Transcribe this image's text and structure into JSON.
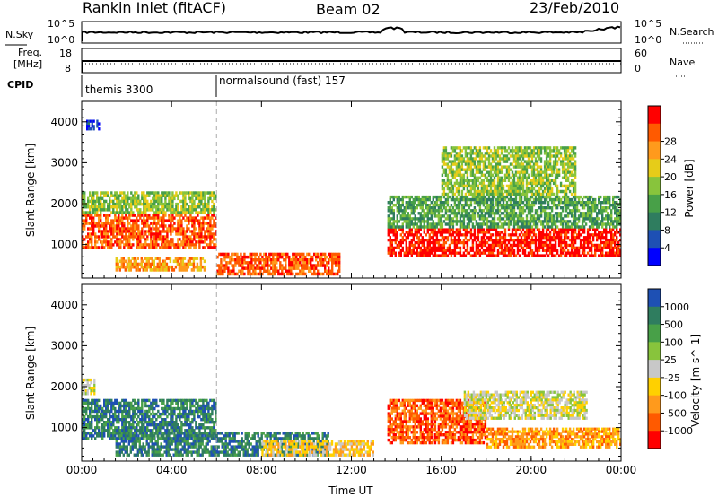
{
  "header": {
    "station": "Rankin Inlet (fitACF)",
    "beam": "Beam 02",
    "date": "23/Feb/2010"
  },
  "top_panel": {
    "nsky_label": "N.Sky",
    "nsearch_label": "N.Search",
    "left_ticks": [
      "10^5",
      "10^0"
    ],
    "right_ticks": [
      "10^5",
      "10^0"
    ],
    "freq_label_1": "Freq.",
    "freq_label_2": "[MHz]",
    "freq_ticks": [
      "18",
      "8"
    ],
    "nave_label": "Nave",
    "nave_ticks": [
      "60",
      "0"
    ],
    "cpid_label": "CPID",
    "cpid_segments": [
      {
        "label": "themis 3300",
        "start_hour": 0
      },
      {
        "label": "normalsound (fast) 157",
        "start_hour": 6
      }
    ]
  },
  "chart_data": [
    {
      "type": "heatmap",
      "title": "",
      "xlabel": "",
      "ylabel": "Slant Range [km]",
      "xlim": [
        0,
        24
      ],
      "ylim": [
        180,
        4500
      ],
      "xtick_labels": [
        "00:00",
        "04:00",
        "08:00",
        "12:00",
        "16:00",
        "20:00",
        "00:00"
      ],
      "xtick_values": [
        0,
        4,
        8,
        12,
        16,
        20,
        24
      ],
      "yticks": [
        1000,
        2000,
        3000,
        4000
      ],
      "colorbar": {
        "label": "Power [dB]",
        "ticks": [
          "4",
          "8",
          "12",
          "16",
          "20",
          "24",
          "28"
        ],
        "colors": [
          "#0000ff",
          "#1e50b4",
          "#2f7d5f",
          "#48a048",
          "#88c43c",
          "#e6cc19",
          "#ff9a1c",
          "#ff5a00",
          "#ff0000"
        ]
      },
      "regions": [
        {
          "t0": 0,
          "t1": 6,
          "r0": 900,
          "r1": 1750,
          "level": 7
        },
        {
          "t0": 0,
          "t1": 6,
          "r0": 1750,
          "r1": 2300,
          "level": 4
        },
        {
          "t0": 0.2,
          "t1": 0.8,
          "r0": 3800,
          "r1": 4050,
          "level": 1
        },
        {
          "t0": 1.5,
          "t1": 5.5,
          "r0": 350,
          "r1": 700,
          "level": 6
        },
        {
          "t0": 6,
          "t1": 11.5,
          "r0": 250,
          "r1": 800,
          "level": 7
        },
        {
          "t0": 13.6,
          "t1": 24,
          "r0": 700,
          "r1": 1400,
          "level": 8
        },
        {
          "t0": 13.6,
          "t1": 24,
          "r0": 1400,
          "r1": 2200,
          "level": 3
        },
        {
          "t0": 16,
          "t1": 22,
          "r0": 2200,
          "r1": 3400,
          "level": 4
        }
      ]
    },
    {
      "type": "heatmap",
      "title": "",
      "xlabel": "Time UT",
      "ylabel": "Slant Range [km]",
      "xlim": [
        0,
        24
      ],
      "ylim": [
        180,
        4500
      ],
      "xtick_labels": [
        "00:00",
        "04:00",
        "08:00",
        "12:00",
        "16:00",
        "20:00",
        "00:00"
      ],
      "xtick_values": [
        0,
        4,
        8,
        12,
        16,
        20,
        24
      ],
      "yticks": [
        1000,
        2000,
        3000,
        4000
      ],
      "colorbar": {
        "label": "Velocity [m s^-1]",
        "ticks": [
          "1000",
          "500",
          "100",
          "25",
          "-25",
          "-100",
          "-500",
          "-1000"
        ],
        "colors": [
          "#1e50b4",
          "#2f7d5f",
          "#48a048",
          "#88c43c",
          "#c8c8c8",
          "#ffd000",
          "#ff9a1c",
          "#ff5a00",
          "#ff0000"
        ]
      },
      "regions": [
        {
          "t0": 0,
          "t1": 6,
          "r0": 700,
          "r1": 1700,
          "level": 1
        },
        {
          "t0": 0,
          "t1": 0.6,
          "r0": 1800,
          "r1": 2200,
          "level": 4
        },
        {
          "t0": 1.5,
          "t1": 11,
          "r0": 300,
          "r1": 900,
          "level": 1
        },
        {
          "t0": 8,
          "t1": 13,
          "r0": 300,
          "r1": 700,
          "level": 5
        },
        {
          "t0": 13.6,
          "t1": 18,
          "r0": 600,
          "r1": 1700,
          "level": 7
        },
        {
          "t0": 17,
          "t1": 22.5,
          "r0": 1200,
          "r1": 1900,
          "level": 4
        },
        {
          "t0": 18,
          "t1": 24,
          "r0": 500,
          "r1": 1000,
          "level": 6
        }
      ]
    }
  ]
}
